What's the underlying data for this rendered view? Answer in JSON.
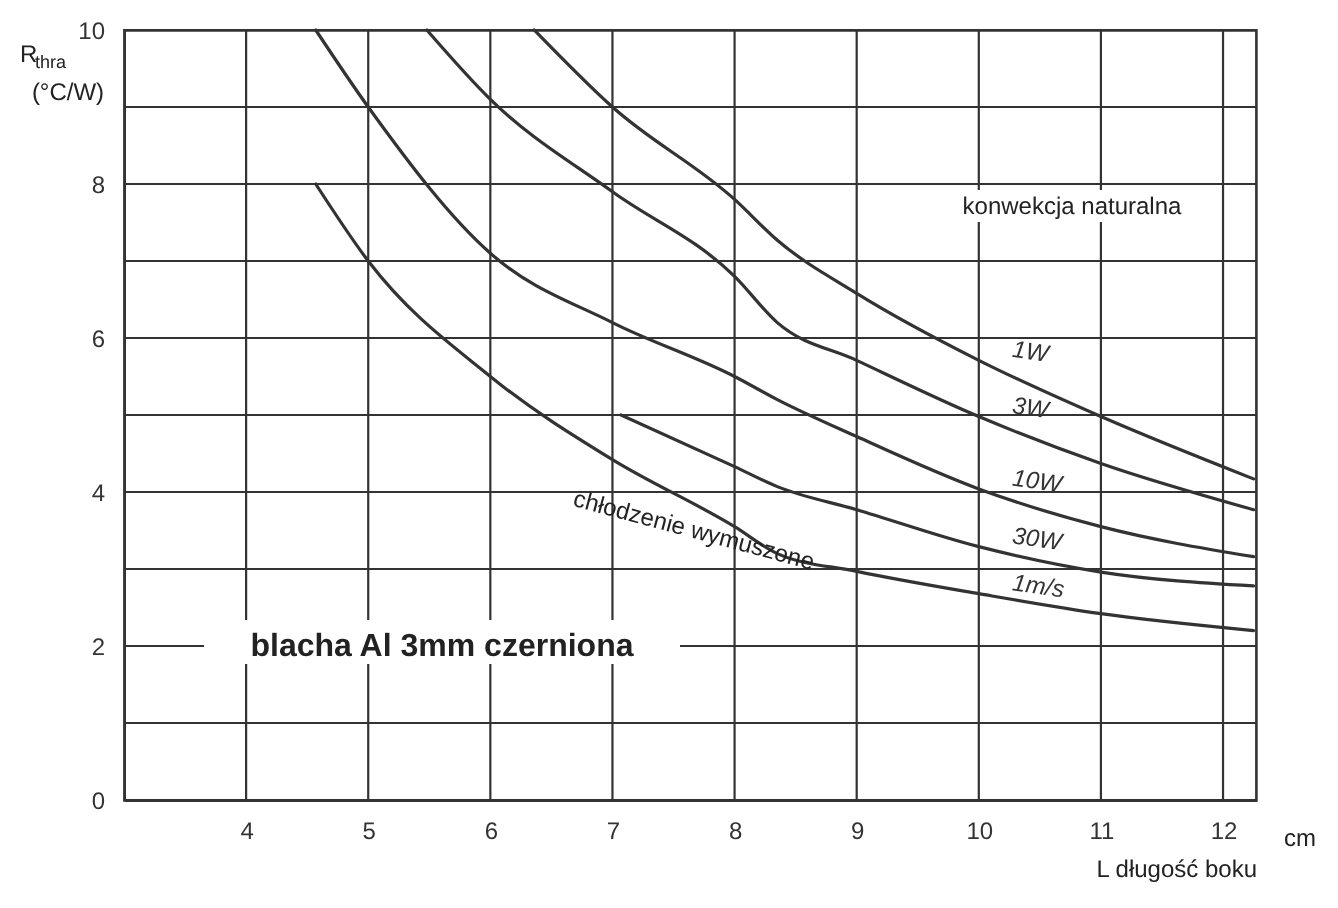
{
  "chart_data": {
    "type": "line",
    "xlabel": "L długość boku",
    "ylabel": "R$_{thra}$ (°C/W)",
    "xlim": [
      3,
      12.27
    ],
    "xticks": [
      4,
      5,
      6,
      7,
      8,
      9,
      10,
      11,
      12
    ],
    "ylim": [
      0,
      10
    ],
    "yticks": [
      0,
      {
        "value": 1,
        "label": null
      },
      2,
      {
        "value": 3,
        "label": null
      },
      4,
      {
        "value": 5,
        "label": null
      },
      6,
      {
        "value": 7,
        "label": null
      },
      8,
      {
        "value": 9,
        "label": null
      },
      10
    ],
    "grid": true,
    "marker": "none",
    "line_style": "solid",
    "series": [
      {
        "name": "1W",
        "color": "#333333",
        "x": [
          6.36,
          7,
          8,
          8.35,
          9,
          10,
          11,
          12.25
        ],
        "values": [
          10,
          9,
          7.8,
          7.27,
          6.58,
          5.71,
          4.98,
          4.17
        ]
      },
      {
        "name": "3W",
        "color": "#333333",
        "x": [
          5.48,
          6,
          7,
          8,
          8.35,
          9,
          10,
          11,
          12.25
        ],
        "values": [
          10,
          9.1,
          7.9,
          6.8,
          6.2,
          5.71,
          4.98,
          4.37,
          3.77
        ]
      },
      {
        "name": "10W",
        "color": "#333333",
        "x": [
          4.57,
          5,
          6,
          7,
          8,
          8.35,
          9,
          10,
          11,
          12.25
        ],
        "values": [
          10,
          9,
          7.1,
          6.2,
          5.5,
          5.2,
          4.72,
          4.04,
          3.55,
          3.16
        ]
      },
      {
        "name": "30W",
        "color": "#333333",
        "x": [
          7.07,
          8,
          8.35,
          9,
          10,
          11,
          12.25
        ],
        "values": [
          5,
          4.33,
          4.07,
          3.77,
          3.29,
          2.96,
          2.78
        ]
      },
      {
        "name": "1m/s",
        "color": "#333333",
        "x": [
          4.57,
          5,
          6,
          7,
          8,
          8.35,
          9,
          10,
          11,
          12.25
        ],
        "values": [
          8,
          7,
          5.5,
          4.42,
          3.55,
          3.2,
          2.97,
          2.68,
          2.42,
          2.2
        ]
      }
    ],
    "annotations": [
      "konwekcja naturalna",
      "chłodzenie wymuszone",
      "blacha Al 3mm czerniona",
      "cm"
    ]
  }
}
